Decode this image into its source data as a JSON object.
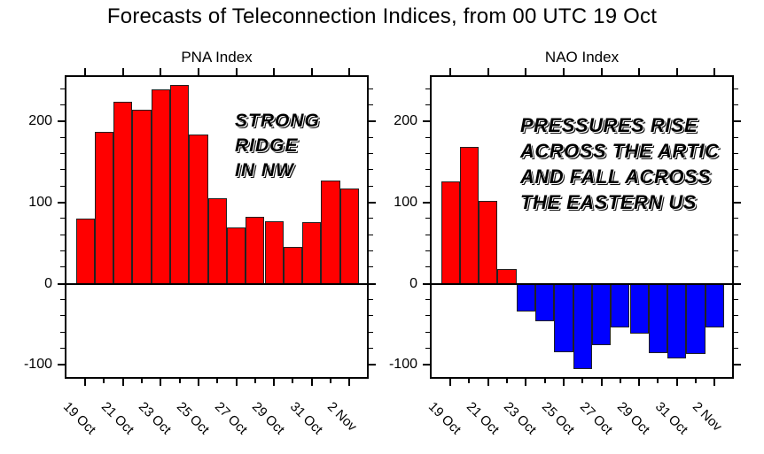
{
  "page": {
    "title": "Forecasts of Teleconnection Indices, from 00 UTC 19 Oct"
  },
  "colors": {
    "positive_bar": "#ff0000",
    "negative_bar": "#0000ff",
    "frame": "#000000",
    "background": "#ffffff",
    "annotation_text": "#000000"
  },
  "chart_data": [
    {
      "type": "bar",
      "title": "PNA Index",
      "categories": [
        "19 Oct",
        "20 Oct",
        "21 Oct",
        "22 Oct",
        "23 Oct",
        "24 Oct",
        "25 Oct",
        "26 Oct",
        "27 Oct",
        "28 Oct",
        "29 Oct",
        "30 Oct",
        "31 Oct",
        "1 Nov",
        "2 Nov"
      ],
      "values": [
        80,
        187,
        224,
        215,
        240,
        245,
        184,
        106,
        69,
        83,
        77,
        45,
        76,
        127,
        118
      ],
      "xticklabels": [
        "19 Oct",
        "21 Oct",
        "23 Oct",
        "25 Oct",
        "27 Oct",
        "29 Oct",
        "31 Oct",
        "2 Nov"
      ],
      "yticks": [
        -100,
        0,
        100,
        200
      ],
      "minor_step": 20,
      "ylim": [
        -115,
        255
      ],
      "xlabel": "",
      "ylabel": "",
      "grid": false,
      "legend": "none",
      "bar_color_rule": "red above zero, blue below zero",
      "annotation_lines": [
        "STRONG",
        "RIDGE",
        "IN NW"
      ]
    },
    {
      "type": "bar",
      "title": "NAO Index",
      "categories": [
        "19 Oct",
        "20 Oct",
        "21 Oct",
        "22 Oct",
        "23 Oct",
        "24 Oct",
        "25 Oct",
        "26 Oct",
        "27 Oct",
        "28 Oct",
        "29 Oct",
        "30 Oct",
        "31 Oct",
        "1 Nov",
        "2 Nov"
      ],
      "values": [
        126,
        169,
        102,
        18,
        -34,
        -46,
        -84,
        -105,
        -76,
        -54,
        -61,
        -85,
        -92,
        -87,
        -54
      ],
      "xticklabels": [
        "19 Oct",
        "21 Oct",
        "23 Oct",
        "25 Oct",
        "27 Oct",
        "29 Oct",
        "31 Oct",
        "2 Nov"
      ],
      "yticks": [
        -100,
        0,
        100,
        200
      ],
      "minor_step": 20,
      "ylim": [
        -115,
        255
      ],
      "xlabel": "",
      "ylabel": "",
      "grid": false,
      "legend": "none",
      "bar_color_rule": "red above zero, blue below zero",
      "annotation_lines": [
        "PRESSURES RISE",
        "ACROSS THE ARTIC",
        "AND FALL ACROSS",
        "THE EASTERN US"
      ]
    }
  ]
}
